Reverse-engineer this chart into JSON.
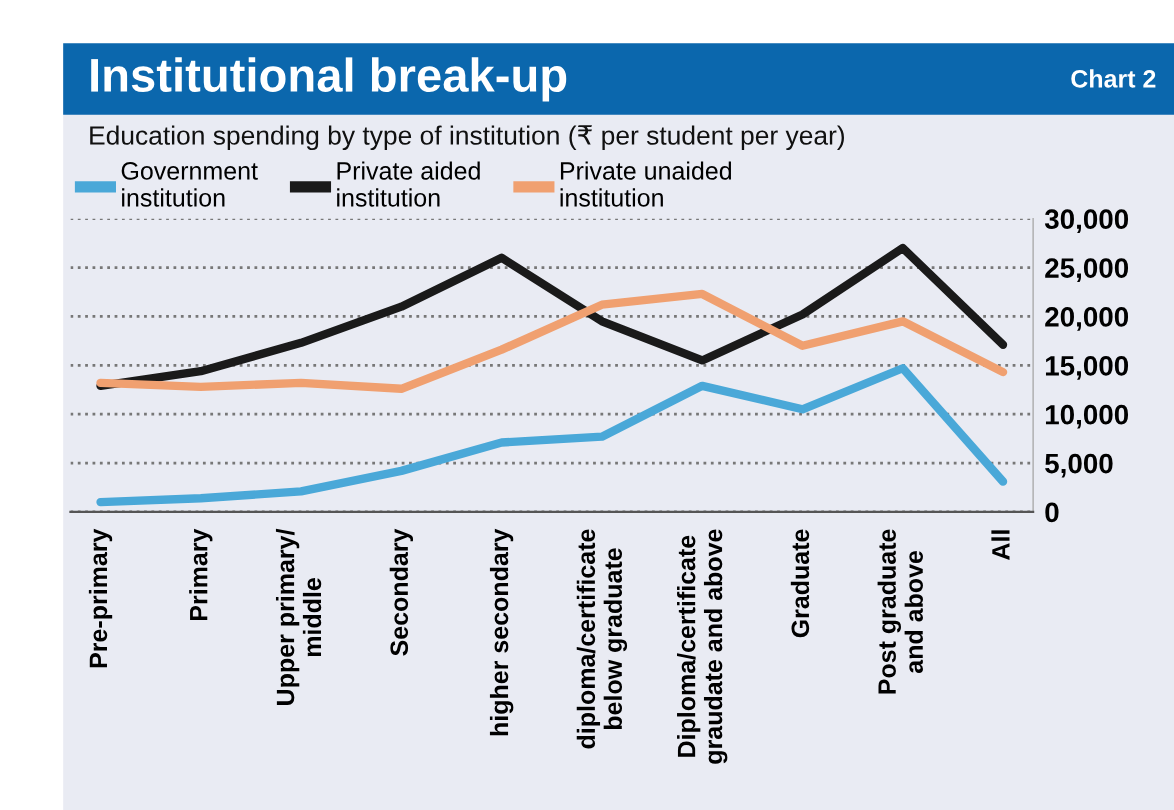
{
  "chart_data": {
    "type": "line",
    "title": "Institutional break-up",
    "subtitle": "Education spending by type of institution (₹ per student per year)",
    "annotations": [
      "Chart 2"
    ],
    "categories": [
      "Pre-primary",
      "Primary",
      "Upper primary/\nmiddle",
      "Secondary",
      "higher secondary",
      "diploma/certificate\nbelow graduate",
      "Diploma/certificate\ngraudate and above",
      "Graduate",
      "Post graduate\nand above",
      "All"
    ],
    "series": [
      {
        "name": "Government\ninstitution",
        "color": "#4aa8d8",
        "values": [
          1000,
          1400,
          2100,
          4200,
          7100,
          7700,
          12900,
          10500,
          14700,
          3100
        ]
      },
      {
        "name": "Private aided\ninstitution",
        "color": "#1a1a1a",
        "values": [
          12900,
          14400,
          17300,
          21000,
          26000,
          19500,
          15500,
          20200,
          27000,
          17100
        ]
      },
      {
        "name": "Private unaided\ninstitution",
        "color": "#f0a070",
        "values": [
          13200,
          12800,
          13200,
          12600,
          16600,
          21200,
          22300,
          17000,
          19500,
          14300
        ]
      }
    ],
    "ylim": [
      0,
      30000
    ],
    "yticks": [
      0,
      {
        "value": 5000,
        "label": "5,000"
      },
      {
        "value": 10000,
        "label": "10,000"
      },
      {
        "value": 15000,
        "label": "15,000"
      },
      {
        "value": 20000,
        "label": "20,000"
      },
      {
        "value": 25000,
        "label": "25,000"
      },
      {
        "value": 30000,
        "label": "30,000"
      }
    ],
    "grid": "y",
    "legend": "top left",
    "marker": "none",
    "line_style": "solid"
  }
}
